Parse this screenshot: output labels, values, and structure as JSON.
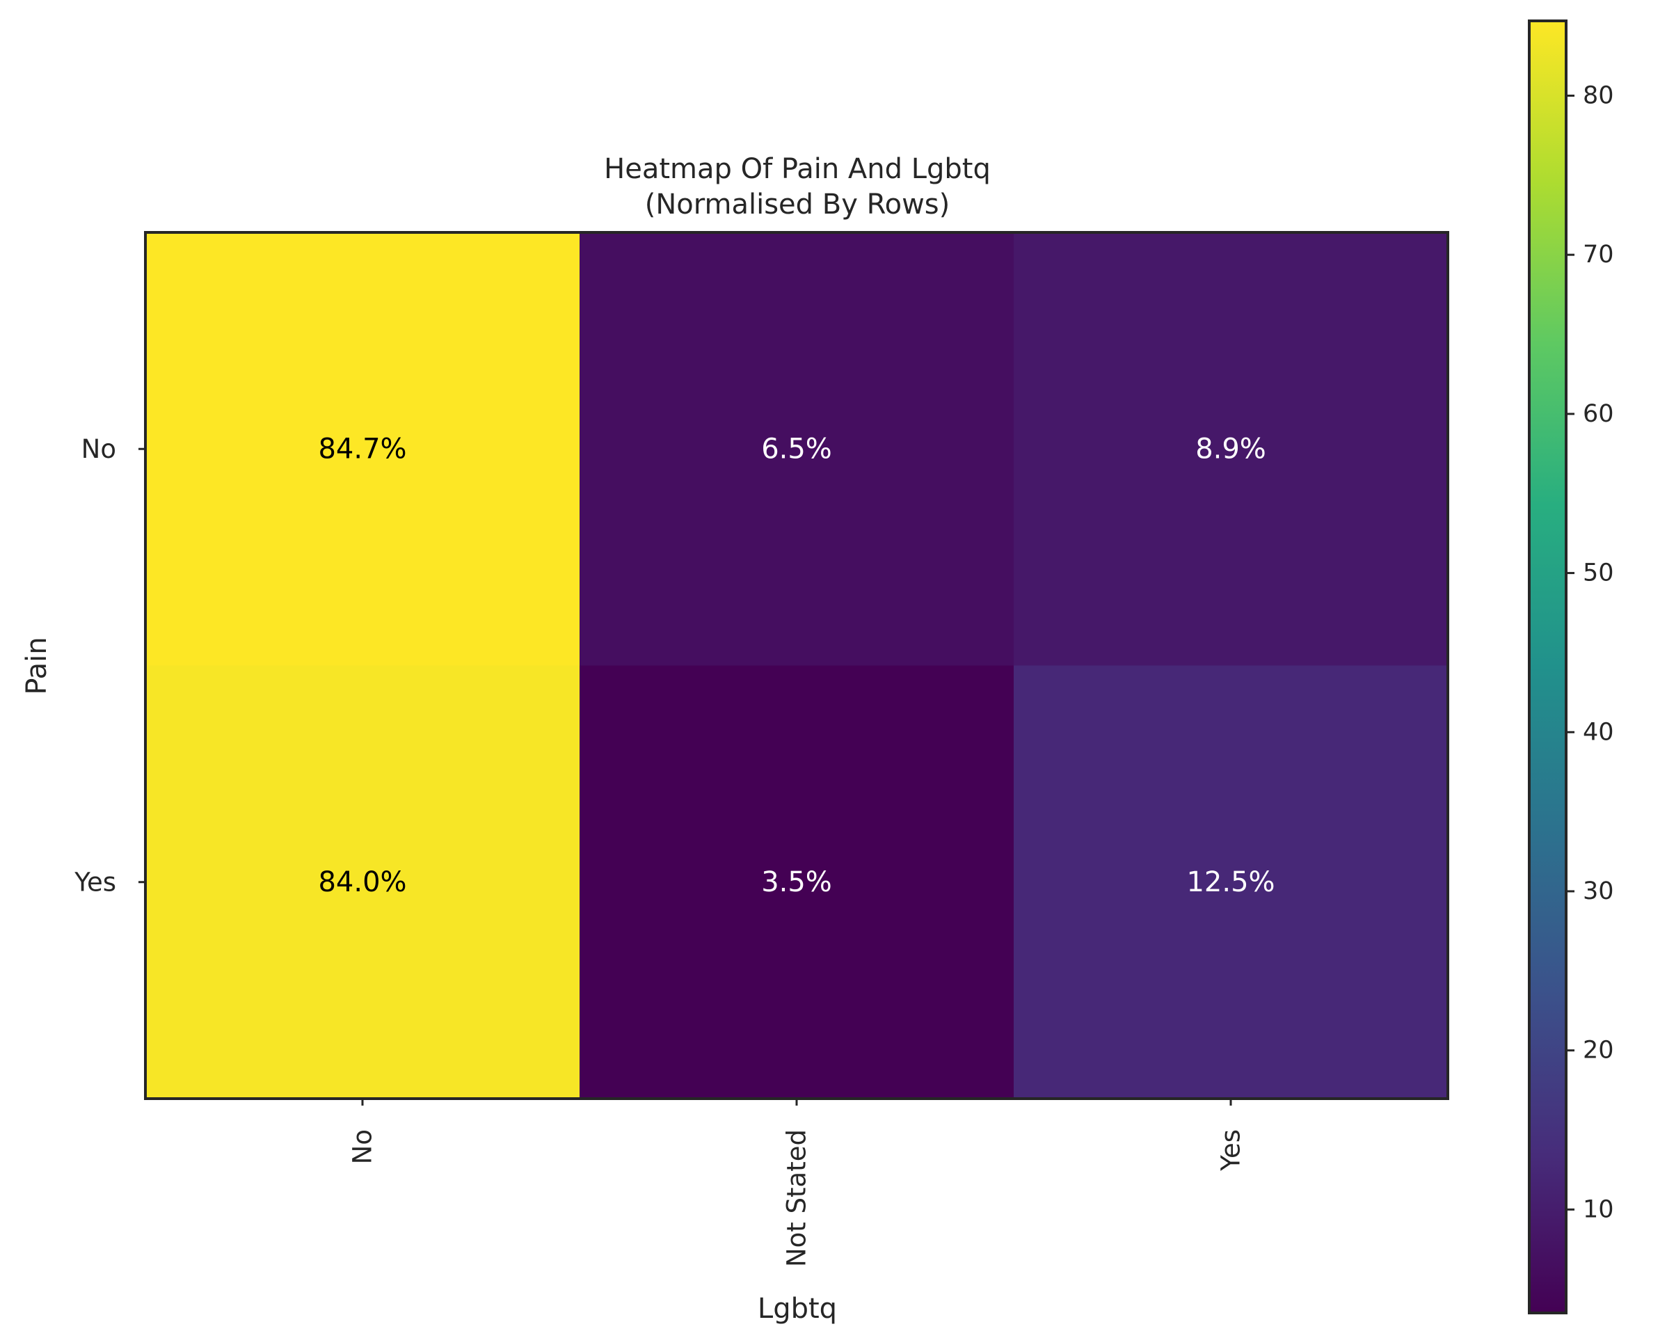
{
  "chart_data": {
    "type": "heatmap",
    "title": "Heatmap Of Pain And Lgbtq",
    "subtitle": "(Normalised By Rows)",
    "xlabel": "Lgbtq",
    "ylabel": "Pain",
    "x_categories": [
      "No",
      "Not Stated",
      "Yes"
    ],
    "y_categories": [
      "No",
      "Yes"
    ],
    "values": [
      [
        84.7,
        6.5,
        8.9
      ],
      [
        84.0,
        3.5,
        12.5
      ]
    ],
    "cell_labels": [
      [
        "84.7%",
        "6.5%",
        "8.9%"
      ],
      [
        "84.0%",
        "3.5%",
        "12.5%"
      ]
    ],
    "colormap": "viridis",
    "colorbar": {
      "range": [
        3.5,
        84.7
      ],
      "ticks": [
        10,
        20,
        30,
        40,
        50,
        60,
        70,
        80
      ],
      "tick_labels": [
        "10",
        "20",
        "30",
        "40",
        "50",
        "60",
        "70",
        "80"
      ]
    },
    "grid": false,
    "colors": {
      "frame": "#262626",
      "text_dark": "#000000",
      "text_light": "#ffffff"
    }
  }
}
